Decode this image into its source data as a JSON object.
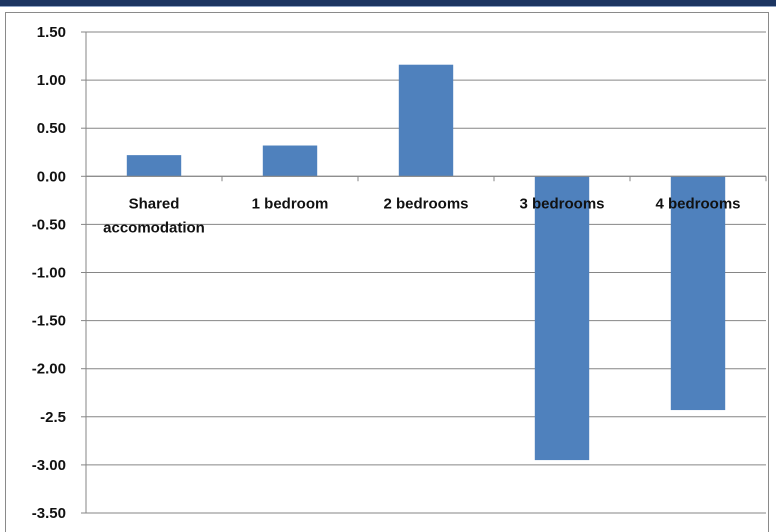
{
  "chart_data": {
    "type": "bar",
    "title": "",
    "xlabel": "",
    "ylabel": "",
    "categories": [
      [
        "Shared",
        "accomodation"
      ],
      [
        "1 bedroom"
      ],
      [
        "2 bedrooms"
      ],
      [
        "3 bedrooms"
      ],
      [
        "4 bedrooms"
      ]
    ],
    "values": [
      0.22,
      0.32,
      1.16,
      -2.95,
      -2.43
    ],
    "ylim": [
      -3.5,
      1.5
    ],
    "yticks": [
      "1.50",
      "1.00",
      "0.50",
      "0.00",
      "-0.50",
      "-1.00",
      "-1.50",
      "-2.00",
      "-2.5",
      "-3.00",
      "-3.50"
    ],
    "ytick_values": [
      1.5,
      1.0,
      0.5,
      0.0,
      -0.5,
      -1.0,
      -1.5,
      -2.0,
      -2.5,
      -3.0,
      -3.5
    ],
    "grid": true,
    "legend": "none",
    "colors": {
      "bar": "#4f81bd",
      "grid": "#868686",
      "axis": "#868686"
    }
  }
}
